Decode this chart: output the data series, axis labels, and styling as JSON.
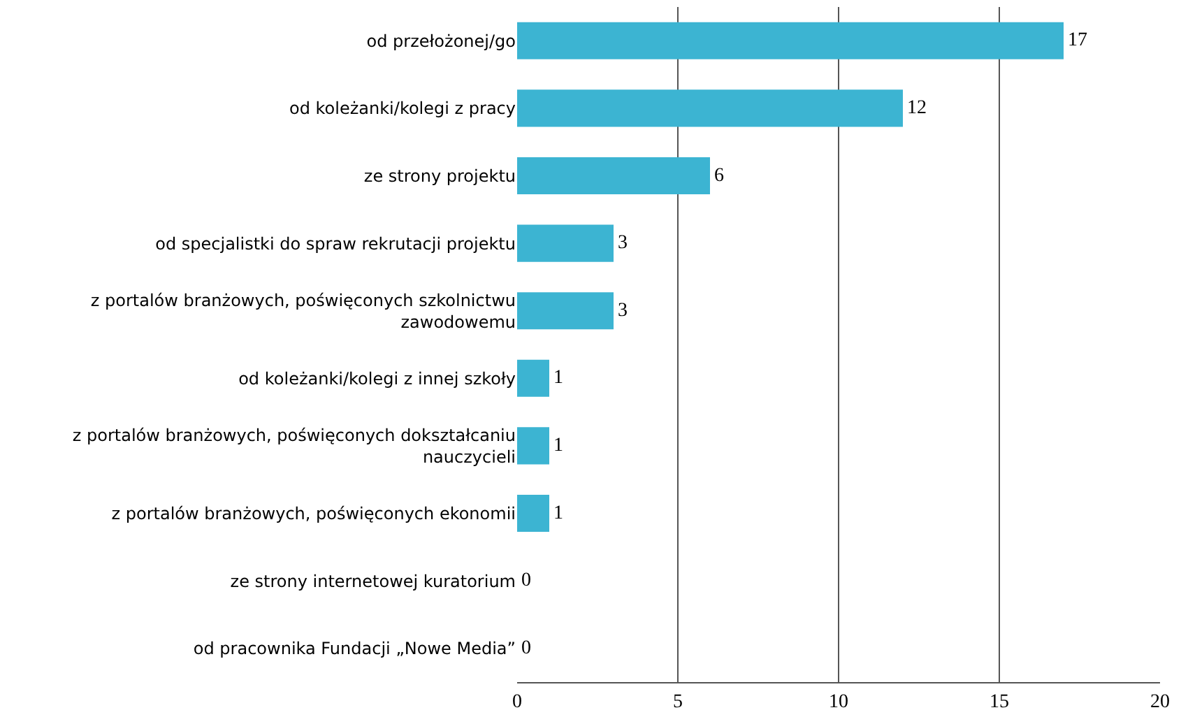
{
  "chart_data": {
    "type": "bar",
    "orientation": "horizontal",
    "categories": [
      "od przełożonej/go",
      "od koleżanki/kolegi z pracy",
      "ze strony projektu",
      "od specjalistki do spraw rekrutacji projektu",
      "z portalów branżowych, poświęconych szkolnictwu zawodowemu",
      "od koleżanki/kolegi z innej szkoły",
      "z portalów branżowych, poświęconych dokształcaniu nauczycieli",
      "z portalów branżowych, poświęconych ekonomii",
      "ze strony internetowej kuratorium",
      "od pracownika Fundacji „Nowe Media”"
    ],
    "values": [
      17,
      12,
      6,
      3,
      3,
      1,
      1,
      1,
      0,
      0
    ],
    "color": "#3cb4d2",
    "xlim": [
      0,
      20
    ],
    "xticks": [
      0,
      5,
      10,
      15,
      20
    ],
    "grid": "x",
    "data_labels": true
  }
}
